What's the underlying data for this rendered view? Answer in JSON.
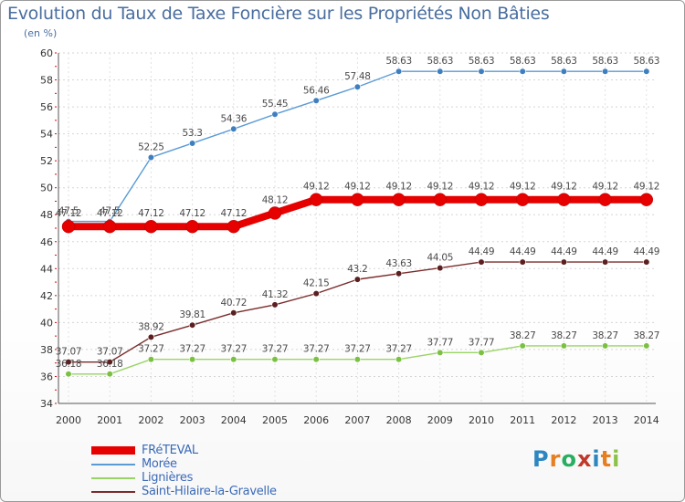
{
  "header": {
    "title": "Evolution du Taux de Taxe Foncière sur les Propriétés Non Bâties",
    "subtitle": "(en %)"
  },
  "logo": {
    "text": "Proxiti",
    "letters": [
      "P",
      "r",
      "o",
      "x",
      "i",
      "t",
      "i"
    ],
    "colors": [
      "#2e86c1",
      "#e67e22",
      "#27ae60",
      "#c0392b",
      "#2e86c1",
      "#e67e22",
      "#8bc34a"
    ]
  },
  "chart_data": {
    "type": "line",
    "title": "Evolution du Taux de Taxe Foncière sur les Propriétés Non Bâties",
    "ylabel": "(en %)",
    "xlabel": "",
    "ylim": [
      34,
      60
    ],
    "yticks": [
      34,
      36,
      38,
      40,
      42,
      44,
      46,
      48,
      50,
      52,
      54,
      56,
      58,
      60
    ],
    "grid": "horizontal-dotted",
    "x": [
      "2000",
      "2001",
      "2002",
      "2003",
      "2004",
      "2005",
      "2006",
      "2007",
      "2008",
      "2009",
      "2010",
      "2011",
      "2012",
      "2013",
      "2014"
    ],
    "series": [
      {
        "name": "Morée",
        "color": "#5b9bd5",
        "marker": "#3f7fc0",
        "emphasis": false,
        "values": [
          47.5,
          47.5,
          52.25,
          53.3,
          54.36,
          55.45,
          56.46,
          57.48,
          58.63,
          58.63,
          58.63,
          58.63,
          58.63,
          58.63,
          58.63
        ],
        "labels": [
          "47.5",
          "47.5",
          "52.25",
          "53.3",
          "54.36",
          "55.45",
          "56.46",
          "57.48",
          "58.63",
          "58.63",
          "58.63",
          "58.63",
          "58.63",
          "58.63",
          "58.63"
        ]
      },
      {
        "name": "Saint-Hilaire-la-Gravelle",
        "color": "#7b2b2b",
        "marker": "#5c1f1f",
        "emphasis": false,
        "values": [
          37.07,
          37.07,
          38.92,
          39.81,
          40.72,
          41.32,
          42.15,
          43.2,
          43.63,
          44.05,
          44.49,
          44.49,
          44.49,
          44.49,
          44.49
        ],
        "labels": [
          "37.07",
          "37.07",
          "38.92",
          "39.81",
          "40.72",
          "41.32",
          "42.15",
          "43.2",
          "43.63",
          "44.05",
          "44.49",
          "44.49",
          "44.49",
          "44.49",
          "44.49"
        ]
      },
      {
        "name": "Lignières",
        "color": "#99d466",
        "marker": "#7cc043",
        "emphasis": false,
        "values": [
          36.18,
          36.18,
          37.27,
          37.27,
          37.27,
          37.27,
          37.27,
          37.27,
          37.27,
          37.77,
          37.77,
          38.27,
          38.27,
          38.27,
          38.27
        ],
        "labels": [
          "36.18",
          "36.18",
          "37.27",
          "37.27",
          "37.27",
          "37.27",
          "37.27",
          "37.27",
          "37.27",
          "37.77",
          "37.77",
          "38.27",
          "38.27",
          "38.27",
          "38.27"
        ]
      },
      {
        "name": "FRéTEVAL",
        "color": "#e60000",
        "marker": "#e60000",
        "emphasis": true,
        "values": [
          47.12,
          47.12,
          47.12,
          47.12,
          47.12,
          48.12,
          49.12,
          49.12,
          49.12,
          49.12,
          49.12,
          49.12,
          49.12,
          49.12,
          49.12
        ],
        "labels": [
          "47.12",
          "47.12",
          "47.12",
          "47.12",
          "47.12",
          "48.12",
          "49.12",
          "49.12",
          "49.12",
          "49.12",
          "49.12",
          "49.12",
          "49.12",
          "49.12",
          "49.12"
        ]
      }
    ],
    "legend": {
      "position": "bottom-left",
      "order": [
        "FRéTEVAL",
        "Morée",
        "Lignières",
        "Saint-Hilaire-la-Gravelle"
      ]
    }
  }
}
